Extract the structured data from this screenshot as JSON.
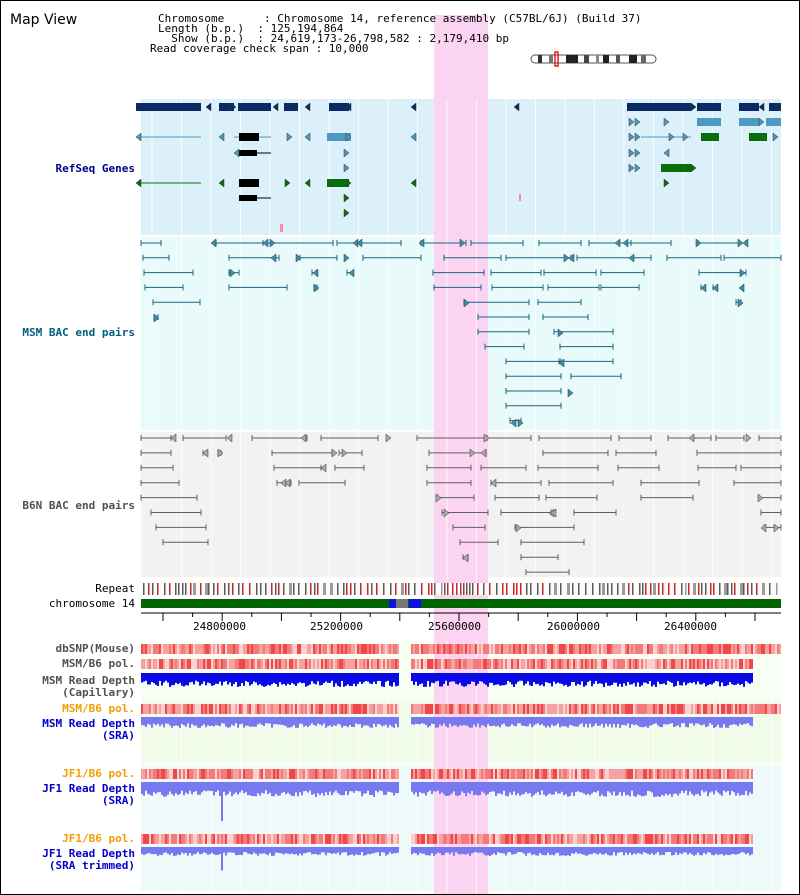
{
  "title": "Map View",
  "info": [
    "Chromosome      : Chromosome 14, reference assembly (C57BL/6J) (Build 37)",
    "Length (b.p.)  : 125,194,864",
    "  Show (b.p.)  : 24,619,173-26,798,582 : 2,179,410 bp",
    "Read coverage check span : 10,000"
  ],
  "tracks": {
    "refseq": "RefSeq Genes",
    "msm_bac": "MSM BAC end pairs",
    "b6n_bac": "B6N BAC end pairs",
    "repeat": "Repeat",
    "chromosome": "chromosome 14",
    "dbsnp": "dbSNP(Mouse)",
    "msm_pol": "MSM/B6 pol.",
    "msm_cap_1": "MSM Read Depth",
    "msm_cap_2": "(Capillary)",
    "msm_pol2": "MSM/B6 pol.",
    "msm_sra_1": "MSM Read Depth",
    "msm_sra_2": "(SRA)",
    "jf1_pol": "JF1/B6 pol.",
    "jf1_sra_1": "JF1 Read Depth",
    "jf1_sra_2": "(SRA)",
    "jf1_pol2": "JF1/B6 pol.",
    "jf1_trim_1": "JF1 Read Depth",
    "jf1_trim_2": "(SRA trimmed)"
  },
  "ruler": [
    "24800000",
    "25200000",
    "25600000",
    "26000000",
    "26400000"
  ],
  "colors": {
    "refseq_bg": "#dcf0fa",
    "msm_bg": "#e8fafa",
    "b6n_bg": "#f2f2f2",
    "highlight": "#fad4f0",
    "refseq_label": "#00008b",
    "msm_label": "#006080",
    "b6n_label": "#505050",
    "orange": "#f59c00",
    "blue_label": "#0000cc",
    "chrom_green": "#006400"
  }
}
